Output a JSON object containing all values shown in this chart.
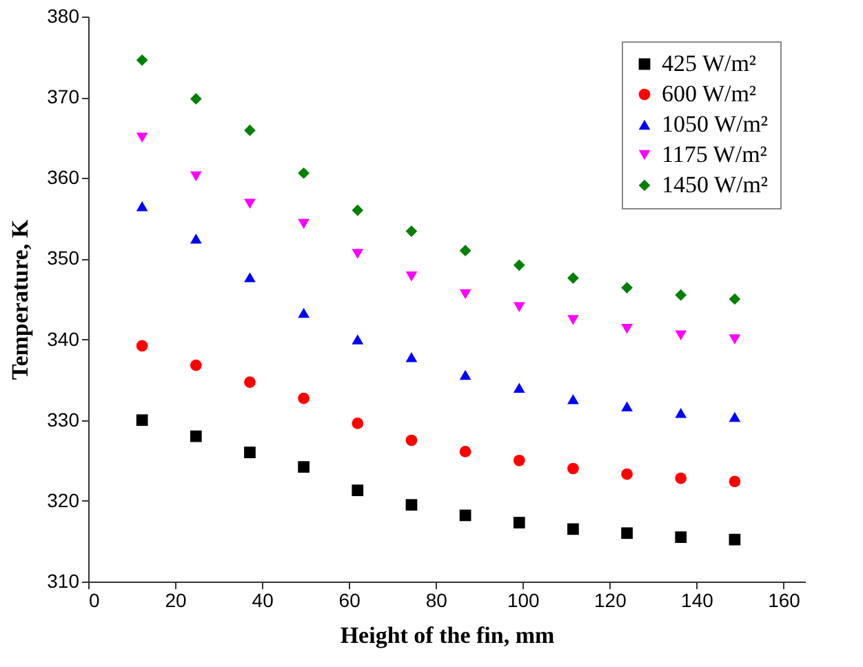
{
  "chart_data": {
    "type": "scatter",
    "xlabel": "Height of the fin, mm",
    "ylabel": "Temperature, K",
    "x": [
      12.4,
      24.8,
      37.2,
      49.6,
      62,
      74.4,
      86.8,
      99.2,
      111.6,
      124,
      136.4,
      148.8
    ],
    "series": [
      {
        "name": "425 W/m²",
        "color": "#000000",
        "marker": "square",
        "values": [
          330,
          328,
          326,
          324.2,
          321.3,
          319.5,
          318.2,
          317.3,
          316.5,
          316,
          315.5,
          315.2
        ]
      },
      {
        "name": "600 W/m²",
        "color": "#ff0000",
        "marker": "circle",
        "values": [
          339.2,
          336.8,
          334.7,
          332.7,
          329.6,
          327.5,
          326.1,
          325,
          324,
          323.3,
          322.8,
          322.4
        ]
      },
      {
        "name": "1050 W/m²",
        "color": "#0000ff",
        "marker": "triangle",
        "values": [
          356.5,
          352.5,
          347.7,
          343.3,
          340,
          337.8,
          335.6,
          334,
          332.6,
          331.7,
          330.9,
          330.4
        ]
      },
      {
        "name": "1175 W/m²",
        "color": "#ff00ff",
        "marker": "triangle-down",
        "values": [
          365,
          360.2,
          356.8,
          354.3,
          350.6,
          347.8,
          345.6,
          344,
          342.4,
          341.3,
          340.5,
          340
        ]
      },
      {
        "name": "1450 W/m²",
        "color": "#008000",
        "marker": "diamond",
        "values": [
          374.6,
          369.8,
          365.9,
          360.6,
          356,
          353.4,
          351,
          349.2,
          347.6,
          346.4,
          345.5,
          345
        ]
      }
    ],
    "xlim": [
      0,
      165
    ],
    "xticks": [
      0,
      20,
      40,
      60,
      80,
      100,
      120,
      140,
      160
    ],
    "ylim": [
      310,
      380
    ],
    "yticks": [
      310,
      320,
      330,
      340,
      350,
      360,
      370,
      380
    ],
    "grid": false,
    "legend": "top right"
  }
}
